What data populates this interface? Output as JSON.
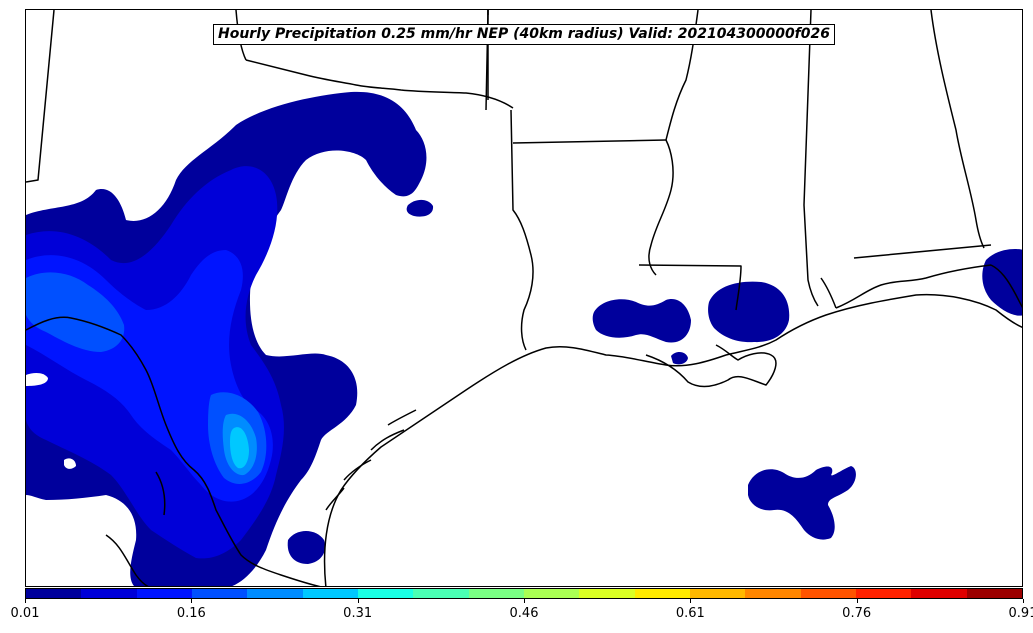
{
  "title": "Hourly Precipitation 0.25 mm/hr NEP (40km radius) Valid: 202104300000f026",
  "colorbar": {
    "colors": [
      "#00009c",
      "#0000d8",
      "#0014ff",
      "#0050ff",
      "#008cff",
      "#00c8ff",
      "#1affe4",
      "#4affb4",
      "#7aff84",
      "#aaff54",
      "#daff24",
      "#ffea00",
      "#ffb800",
      "#ff8600",
      "#ff5400",
      "#ff2200",
      "#df0000",
      "#9c0000"
    ],
    "ticks": [
      "0.01",
      "0.16",
      "0.31",
      "0.46",
      "0.61",
      "0.76",
      "0.91"
    ]
  },
  "map": {
    "land_color": "#ffffff",
    "boundary_color": "#000000",
    "precip_levels": [
      "#00009c",
      "#0000d8",
      "#0014ff",
      "#0050ff",
      "#008cff",
      "#00c8ff"
    ]
  }
}
